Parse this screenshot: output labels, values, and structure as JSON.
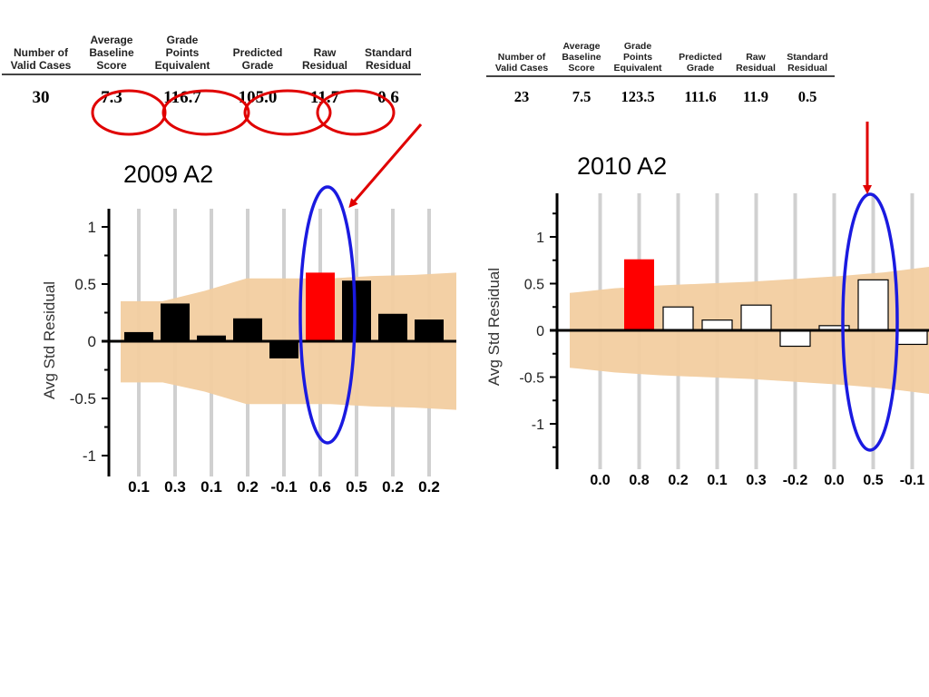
{
  "table_headers": [
    [
      "Number of",
      "Valid Cases"
    ],
    [
      "Average",
      "Baseline",
      "Score"
    ],
    [
      "Grade",
      "Points",
      "Equivalent"
    ],
    [
      "Predicted",
      "Grade"
    ],
    [
      "Raw",
      "Residual"
    ],
    [
      "Standard",
      "Residual"
    ]
  ],
  "tables": [
    {
      "values": [
        "30",
        "7.3",
        "116.7",
        "105.0",
        "11.7",
        "0.6"
      ]
    },
    {
      "values": [
        "23",
        "7.5",
        "123.5",
        "111.6",
        "11.9",
        "0.5"
      ]
    }
  ],
  "colors": {
    "band": "#f2ceA0",
    "highlight": "#ff0000",
    "bar_2009": "#000000",
    "bar_2010": "#ffffff",
    "circle_red": "#e00000",
    "ellipse_blue": "#1a1ae0",
    "arrow": "#e00000"
  },
  "chart_data": [
    {
      "type": "bar",
      "title": "2009 A2",
      "ylabel": "Avg Std Residual",
      "ylim": [
        -1.1,
        1.1
      ],
      "yticks": [
        "1",
        "0.5",
        "0",
        "-0.5",
        "-1"
      ],
      "categories": [
        "0.1",
        "0.3",
        "0.1",
        "0.2",
        "-0.1",
        "0.6",
        "0.5",
        "0.2",
        "0.2"
      ],
      "values": [
        0.08,
        0.33,
        0.05,
        0.2,
        -0.15,
        0.6,
        0.53,
        0.24,
        0.19
      ],
      "highlight_index": 5,
      "band_upper": [
        0.35,
        0.35,
        0.44,
        0.55,
        0.55,
        0.55,
        0.57,
        0.58,
        0.6
      ],
      "band_lower": [
        -0.36,
        -0.36,
        -0.44,
        -0.55,
        -0.55,
        -0.55,
        -0.57,
        -0.58,
        -0.6
      ]
    },
    {
      "type": "bar",
      "title": "2010 A2",
      "ylabel": "Avg Std Residual",
      "ylim": [
        -1.4,
        1.4
      ],
      "yticks": [
        "1",
        "0.5",
        "0",
        "-0.5",
        "-1"
      ],
      "categories": [
        "0.0",
        "0.8",
        "0.2",
        "0.1",
        "0.3",
        "-0.2",
        "0.0",
        "0.5",
        "-0.1"
      ],
      "values": [
        0.0,
        0.76,
        0.25,
        0.11,
        0.27,
        -0.17,
        0.05,
        0.54,
        -0.15
      ],
      "highlight_index": 1,
      "band_upper": [
        0.4,
        0.45,
        0.48,
        0.5,
        0.52,
        0.55,
        0.58,
        0.62,
        0.68
      ],
      "band_lower": [
        -0.4,
        -0.45,
        -0.48,
        -0.5,
        -0.52,
        -0.55,
        -0.58,
        -0.62,
        -0.68
      ]
    }
  ]
}
